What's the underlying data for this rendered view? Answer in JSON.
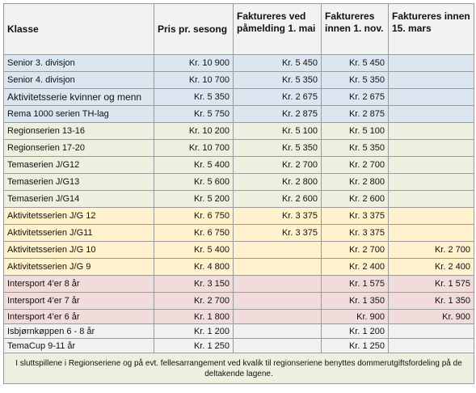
{
  "table": {
    "headers": [
      "Klasse",
      "Pris pr. sesong",
      "Faktureres ved påmelding 1. mai",
      "Faktureres innen 1. nov.",
      "Faktureres innen 15. mars"
    ],
    "rows": [
      [
        "Senior 3. divisjon",
        "Kr. 10 900",
        "Kr. 5 450",
        "Kr. 5 450",
        null
      ],
      [
        "Senior 4. divisjon",
        "Kr. 10 700",
        "Kr. 5 350",
        "Kr. 5 350",
        null
      ],
      [
        "Aktivitetsserie kvinner og menn",
        "Kr. 5 350",
        "Kr. 2 675",
        "Kr. 2 675",
        null
      ],
      [
        "Rema 1000 serien TH-lag",
        "Kr. 5 750",
        "Kr. 2 875",
        "Kr. 2 875",
        null
      ],
      [
        "Regionserien 13-16",
        "Kr. 10 200",
        "Kr. 5 100",
        "Kr. 5 100",
        null
      ],
      [
        "Regionserien 17-20",
        "Kr. 10 700",
        "Kr. 5 350",
        "Kr. 5 350",
        null
      ],
      [
        "Temaserien J/G12",
        "Kr. 5 400",
        "Kr. 2 700",
        "Kr. 2 700",
        null
      ],
      [
        "Temaserien J/G13",
        "Kr. 5 600",
        "Kr. 2 800",
        "Kr. 2 800",
        null
      ],
      [
        "Temaserien J/G14",
        "Kr. 5 200",
        "Kr. 2 600",
        "Kr. 2 600",
        null
      ],
      [
        "Aktivitetsserien J/G 12",
        "Kr. 6 750",
        "Kr. 3 375",
        "Kr. 3 375",
        null
      ],
      [
        "Aktivitetsserien J/G11",
        "Kr. 6 750",
        "Kr. 3 375",
        "Kr. 3 375",
        null
      ],
      [
        "Aktivitetsserien J/G 10",
        "Kr. 5 400",
        null,
        "Kr. 2 700",
        "Kr. 2 700"
      ],
      [
        "Aktivitetsserien J/G 9",
        "Kr. 4 800",
        null,
        "Kr. 2 400",
        "Kr. 2 400"
      ],
      [
        "Intersport 4'er 8 år",
        "Kr. 3 150",
        null,
        "Kr. 1 575",
        "Kr. 1 575"
      ],
      [
        "Intersport 4'er 7 år",
        "Kr. 2 700",
        null,
        "Kr. 1 350",
        "Kr. 1 350"
      ],
      [
        "Intersport 4'er 6 år",
        "Kr. 1 800",
        null,
        "Kr. 900",
        "Kr. 900"
      ],
      [
        "Isbjørnkøppen 6 - 8 år",
        "Kr. 1 200",
        null,
        "Kr. 1 200",
        null
      ],
      [
        "TemaCup 9-11 år",
        "Kr. 1 250",
        null,
        "Kr. 1 250",
        null
      ]
    ]
  },
  "footer": "I sluttspillene i Regionseriene og på evt. fellesarrangement ved kvalik til regionseriene benyttes dommerutgiftsfordeling på de deltakende lagene."
}
